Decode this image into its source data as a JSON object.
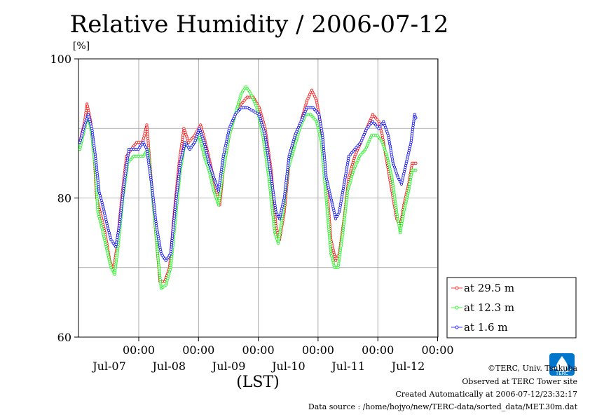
{
  "chart_data": {
    "type": "line",
    "title": "Relative Humidity / 2006-07-12",
    "ylabel": "[%]",
    "xlabel": "(LST)",
    "ylim": [
      60,
      100
    ],
    "y_ticks": [
      "60",
      "80",
      "100"
    ],
    "x_range_days": [
      "2006-07-06 07:00",
      "2006-07-12 24:00"
    ],
    "x_ticks": [
      {
        "time": "00:00",
        "date": "Jul-07"
      },
      {
        "time": "00:00",
        "date": "Jul-08"
      },
      {
        "time": "00:00",
        "date": "Jul-09"
      },
      {
        "time": "00:00",
        "date": "Jul-10"
      },
      {
        "time": "00:00",
        "date": "Jul-11"
      },
      {
        "time": "00:00",
        "date": "Jul-12"
      }
    ],
    "grid": true,
    "legend_position": "bottom-right",
    "series": [
      {
        "name": "at 29.5 m",
        "color": "#ff0000",
        "points": [
          [
            0.0,
            88
          ],
          [
            0.08,
            91
          ],
          [
            0.12,
            93.5
          ],
          [
            0.18,
            91
          ],
          [
            0.24,
            86
          ],
          [
            0.28,
            80
          ],
          [
            0.34,
            78
          ],
          [
            0.42,
            75
          ],
          [
            0.5,
            71
          ],
          [
            0.56,
            69.5
          ],
          [
            0.62,
            73
          ],
          [
            0.7,
            80
          ],
          [
            0.78,
            86
          ],
          [
            0.86,
            87
          ],
          [
            0.95,
            88
          ],
          [
            1.05,
            88
          ],
          [
            1.12,
            90.5
          ],
          [
            1.2,
            82
          ],
          [
            1.28,
            74
          ],
          [
            1.34,
            68
          ],
          [
            1.42,
            68
          ],
          [
            1.5,
            70
          ],
          [
            1.58,
            78
          ],
          [
            1.66,
            85
          ],
          [
            1.74,
            90
          ],
          [
            1.82,
            88
          ],
          [
            1.92,
            89
          ],
          [
            2.02,
            90.5
          ],
          [
            2.1,
            88
          ],
          [
            2.18,
            85
          ],
          [
            2.26,
            82
          ],
          [
            2.34,
            79
          ],
          [
            2.4,
            84
          ],
          [
            2.5,
            89
          ],
          [
            2.6,
            92
          ],
          [
            2.7,
            93.5
          ],
          [
            2.8,
            94.5
          ],
          [
            2.9,
            94.5
          ],
          [
            3.0,
            93
          ],
          [
            3.1,
            90
          ],
          [
            3.2,
            84
          ],
          [
            3.28,
            76
          ],
          [
            3.34,
            74
          ],
          [
            3.42,
            78
          ],
          [
            3.5,
            85
          ],
          [
            3.6,
            89
          ],
          [
            3.7,
            91
          ],
          [
            3.8,
            94
          ],
          [
            3.88,
            95.5
          ],
          [
            3.96,
            94
          ],
          [
            4.04,
            90
          ],
          [
            4.12,
            83
          ],
          [
            4.2,
            74
          ],
          [
            4.28,
            71
          ],
          [
            4.34,
            72
          ],
          [
            4.42,
            77
          ],
          [
            4.5,
            83
          ],
          [
            4.6,
            86
          ],
          [
            4.7,
            88
          ],
          [
            4.8,
            90
          ],
          [
            4.9,
            92
          ],
          [
            5.0,
            91
          ],
          [
            5.06,
            89
          ],
          [
            5.14,
            85
          ],
          [
            5.22,
            81
          ],
          [
            5.3,
            77
          ],
          [
            5.36,
            76
          ],
          [
            5.42,
            79
          ],
          [
            5.5,
            82
          ],
          [
            5.56,
            85
          ],
          [
            5.62,
            85
          ]
        ]
      },
      {
        "name": "at 12.3 m",
        "color": "#00ff00",
        "points": [
          [
            0.0,
            87
          ],
          [
            0.08,
            90
          ],
          [
            0.14,
            92
          ],
          [
            0.2,
            89
          ],
          [
            0.26,
            84
          ],
          [
            0.3,
            78
          ],
          [
            0.36,
            76
          ],
          [
            0.44,
            73
          ],
          [
            0.52,
            70
          ],
          [
            0.58,
            69
          ],
          [
            0.64,
            73
          ],
          [
            0.72,
            80
          ],
          [
            0.8,
            85
          ],
          [
            0.9,
            86
          ],
          [
            0.98,
            86
          ],
          [
            1.06,
            86
          ],
          [
            1.14,
            87
          ],
          [
            1.22,
            80
          ],
          [
            1.3,
            72
          ],
          [
            1.36,
            67
          ],
          [
            1.44,
            67.5
          ],
          [
            1.52,
            70
          ],
          [
            1.6,
            77
          ],
          [
            1.68,
            84
          ],
          [
            1.76,
            88
          ],
          [
            1.84,
            87
          ],
          [
            1.92,
            88
          ],
          [
            2.0,
            89
          ],
          [
            2.08,
            86
          ],
          [
            2.16,
            84
          ],
          [
            2.24,
            81
          ],
          [
            2.32,
            79
          ],
          [
            2.4,
            84
          ],
          [
            2.5,
            89
          ],
          [
            2.6,
            92
          ],
          [
            2.7,
            95
          ],
          [
            2.78,
            96
          ],
          [
            2.86,
            95
          ],
          [
            2.96,
            93
          ],
          [
            3.06,
            89
          ],
          [
            3.16,
            83
          ],
          [
            3.26,
            75
          ],
          [
            3.32,
            73.5
          ],
          [
            3.4,
            78
          ],
          [
            3.48,
            84
          ],
          [
            3.58,
            87
          ],
          [
            3.68,
            90
          ],
          [
            3.78,
            92
          ],
          [
            3.86,
            92
          ],
          [
            3.96,
            91
          ],
          [
            4.04,
            88
          ],
          [
            4.12,
            80
          ],
          [
            4.2,
            72
          ],
          [
            4.26,
            70
          ],
          [
            4.32,
            70
          ],
          [
            4.4,
            75
          ],
          [
            4.48,
            81
          ],
          [
            4.58,
            84
          ],
          [
            4.68,
            86
          ],
          [
            4.78,
            87
          ],
          [
            4.88,
            89
          ],
          [
            4.98,
            89
          ],
          [
            5.06,
            88
          ],
          [
            5.14,
            86
          ],
          [
            5.22,
            83
          ],
          [
            5.3,
            78
          ],
          [
            5.36,
            75
          ],
          [
            5.42,
            78
          ],
          [
            5.5,
            81
          ],
          [
            5.56,
            84
          ],
          [
            5.62,
            84
          ]
        ]
      },
      {
        "name": "at 1.6 m",
        "color": "#0000ff",
        "points": [
          [
            0.0,
            88
          ],
          [
            0.08,
            90.5
          ],
          [
            0.14,
            92
          ],
          [
            0.2,
            90
          ],
          [
            0.26,
            86
          ],
          [
            0.32,
            81
          ],
          [
            0.38,
            79
          ],
          [
            0.46,
            76
          ],
          [
            0.52,
            74
          ],
          [
            0.6,
            73
          ],
          [
            0.66,
            76
          ],
          [
            0.74,
            82
          ],
          [
            0.82,
            87
          ],
          [
            0.9,
            87
          ],
          [
            0.98,
            87
          ],
          [
            1.06,
            88
          ],
          [
            1.12,
            87
          ],
          [
            1.2,
            82
          ],
          [
            1.28,
            76
          ],
          [
            1.36,
            72
          ],
          [
            1.44,
            71
          ],
          [
            1.52,
            72
          ],
          [
            1.6,
            79
          ],
          [
            1.68,
            85
          ],
          [
            1.76,
            88
          ],
          [
            1.84,
            87
          ],
          [
            1.92,
            88
          ],
          [
            2.0,
            90
          ],
          [
            2.08,
            88
          ],
          [
            2.16,
            85
          ],
          [
            2.24,
            83
          ],
          [
            2.32,
            81
          ],
          [
            2.4,
            86
          ],
          [
            2.5,
            90
          ],
          [
            2.6,
            92
          ],
          [
            2.7,
            93
          ],
          [
            2.8,
            93
          ],
          [
            2.9,
            92.5
          ],
          [
            3.0,
            92
          ],
          [
            3.1,
            89
          ],
          [
            3.2,
            83
          ],
          [
            3.28,
            78
          ],
          [
            3.34,
            77
          ],
          [
            3.42,
            80
          ],
          [
            3.5,
            86
          ],
          [
            3.6,
            89
          ],
          [
            3.7,
            91
          ],
          [
            3.8,
            93
          ],
          [
            3.9,
            93
          ],
          [
            4.0,
            92
          ],
          [
            4.06,
            89
          ],
          [
            4.12,
            83
          ],
          [
            4.2,
            80
          ],
          [
            4.28,
            77
          ],
          [
            4.34,
            78
          ],
          [
            4.42,
            82
          ],
          [
            4.5,
            86
          ],
          [
            4.6,
            87
          ],
          [
            4.7,
            88
          ],
          [
            4.8,
            90
          ],
          [
            4.9,
            91
          ],
          [
            5.0,
            90
          ],
          [
            5.08,
            91
          ],
          [
            5.16,
            89
          ],
          [
            5.24,
            85
          ],
          [
            5.32,
            83
          ],
          [
            5.38,
            82
          ],
          [
            5.46,
            85
          ],
          [
            5.54,
            88
          ],
          [
            5.6,
            92
          ],
          [
            5.62,
            91.5
          ]
        ]
      }
    ]
  },
  "footer": {
    "credit": "©TERC, Univ. Tsukuba",
    "observed": "Observed at TERC Tower site",
    "created": "Created Automatically at 2006-07-12/23:32:17",
    "source": "Data source : /home/hojyo/new/TERC-data/sorted_data/MET.30m.dat"
  },
  "logo": {
    "text": "TERC",
    "color": "#0077cc",
    "icon": "terc-logo-icon"
  }
}
